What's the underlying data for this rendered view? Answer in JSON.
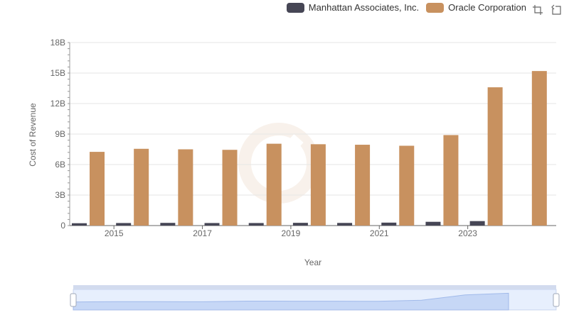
{
  "legend": {
    "series": [
      {
        "name": "Manhattan Associates, Inc.",
        "color": "#464655"
      },
      {
        "name": "Oracle Corporation",
        "color": "#c8915f"
      }
    ]
  },
  "toolbox": {
    "icons": [
      "zoom-icon",
      "restore-icon"
    ]
  },
  "chart_data": {
    "type": "bar",
    "xlabel": "Year",
    "ylabel": "Cost of Revenue",
    "x_tick_labels": [
      "2015",
      "2017",
      "2019",
      "2021",
      "2023"
    ],
    "y_tick_labels": [
      "0",
      "3B",
      "6B",
      "9B",
      "12B",
      "15B",
      "18B"
    ],
    "ylim": [
      0,
      18000000000
    ],
    "categories": [
      "2014",
      "2015",
      "2016",
      "2017",
      "2018",
      "2019",
      "2020",
      "2021",
      "2022",
      "2023",
      "2024"
    ],
    "series": [
      {
        "name": "Manhattan Associates, Inc.",
        "color": "#464655",
        "values": [
          230000000,
          250000000,
          265000000,
          250000000,
          250000000,
          270000000,
          260000000,
          290000000,
          370000000,
          440000000,
          0
        ]
      },
      {
        "name": "Oracle Corporation",
        "color": "#c8915f",
        "values": [
          7250000000,
          7550000000,
          7500000000,
          7450000000,
          8050000000,
          8000000000,
          7950000000,
          7850000000,
          8900000000,
          13600000000,
          15200000000
        ]
      }
    ],
    "grid": true,
    "legend_position": "top-right",
    "datazoom": {
      "start": 0,
      "end": 100
    }
  }
}
